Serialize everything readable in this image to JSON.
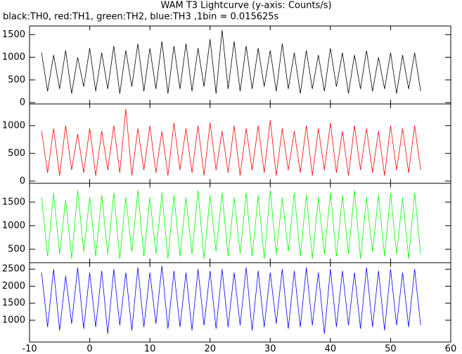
{
  "chart_data": [
    {
      "type": "line",
      "title": "WAM T3 Lightcurve (y-axis: Counts/s)",
      "subtitle": "black:TH0, red:TH1, green:TH2, blue:TH3 ,1bin = 0.015625s",
      "x": [
        -8,
        -7,
        -6,
        -5,
        -4,
        -3,
        -2,
        -1,
        0,
        1,
        2,
        3,
        4,
        5,
        6,
        7,
        8,
        9,
        10,
        11,
        12,
        13,
        14,
        15,
        16,
        17,
        18,
        19,
        20,
        21,
        22,
        23,
        24,
        25,
        26,
        27,
        28,
        29,
        30,
        31,
        32,
        33,
        34,
        35,
        36,
        37,
        38,
        39,
        40,
        41,
        42,
        43,
        44,
        45,
        46,
        47,
        48,
        49,
        50,
        51,
        52,
        53,
        54,
        55
      ],
      "series": [
        {
          "color": "#000000",
          "values": [
            1100,
            250,
            1050,
            300,
            1150,
            200,
            1000,
            350,
            1200,
            250,
            1100,
            300,
            1250,
            200,
            1150,
            350,
            1300,
            250,
            1200,
            300,
            1350,
            200,
            1250,
            300,
            1300,
            250,
            1200,
            350,
            1400,
            200,
            1600,
            300,
            1350,
            250,
            1250,
            300,
            1200,
            350,
            1150,
            250,
            1300,
            300,
            1100,
            200,
            1150,
            300,
            1050,
            250,
            1200,
            350,
            1100,
            200,
            1050,
            300,
            1150,
            250,
            1000,
            300,
            1100,
            200,
            1050,
            300,
            1100,
            250
          ]
        }
      ],
      "xlim": [
        -10,
        60
      ],
      "ylim": [
        -30,
        1690
      ],
      "yticks": [
        0,
        500,
        1000,
        1500
      ]
    },
    {
      "type": "line",
      "x": [
        -8,
        -7,
        -6,
        -5,
        -4,
        -3,
        -2,
        -1,
        0,
        1,
        2,
        3,
        4,
        5,
        6,
        7,
        8,
        9,
        10,
        11,
        12,
        13,
        14,
        15,
        16,
        17,
        18,
        19,
        20,
        21,
        22,
        23,
        24,
        25,
        26,
        27,
        28,
        29,
        30,
        31,
        32,
        33,
        34,
        35,
        36,
        37,
        38,
        39,
        40,
        41,
        42,
        43,
        44,
        45,
        46,
        47,
        48,
        49,
        50,
        51,
        52,
        53,
        54,
        55
      ],
      "series": [
        {
          "color": "#ff0000",
          "values": [
            900,
            150,
            950,
            100,
            1000,
            200,
            850,
            150,
            950,
            100,
            900,
            200,
            1000,
            150,
            1300,
            100,
            950,
            200,
            1000,
            150,
            900,
            100,
            1050,
            200,
            950,
            150,
            1000,
            100,
            1050,
            200,
            900,
            150,
            1000,
            100,
            950,
            200,
            1000,
            150,
            1100,
            100,
            950,
            200,
            900,
            150,
            1000,
            100,
            950,
            200,
            1050,
            150,
            900,
            100,
            1000,
            200,
            950,
            150,
            900,
            100,
            1000,
            200,
            950,
            150,
            1000,
            200
          ]
        }
      ],
      "xlim": [
        -10,
        60
      ],
      "ylim": [
        -40,
        1390
      ],
      "yticks": [
        0,
        500,
        1000
      ]
    },
    {
      "type": "line",
      "x": [
        -8,
        -7,
        -6,
        -5,
        -4,
        -3,
        -2,
        -1,
        0,
        1,
        2,
        3,
        4,
        5,
        6,
        7,
        8,
        9,
        10,
        11,
        12,
        13,
        14,
        15,
        16,
        17,
        18,
        19,
        20,
        21,
        22,
        23,
        24,
        25,
        26,
        27,
        28,
        29,
        30,
        31,
        32,
        33,
        34,
        35,
        36,
        37,
        38,
        39,
        40,
        41,
        42,
        43,
        44,
        45,
        46,
        47,
        48,
        49,
        50,
        51,
        52,
        53,
        54,
        55
      ],
      "series": [
        {
          "color": "#00ff00",
          "values": [
            1600,
            350,
            1700,
            400,
            1550,
            300,
            1750,
            450,
            1600,
            350,
            1650,
            400,
            1700,
            300,
            1600,
            450,
            1750,
            350,
            1600,
            400,
            1700,
            300,
            1650,
            350,
            1600,
            400,
            1750,
            300,
            1650,
            450,
            1700,
            350,
            1600,
            400,
            1700,
            350,
            1650,
            300,
            1750,
            400,
            1600,
            450,
            1700,
            350,
            1650,
            300,
            1600,
            400,
            1700,
            350,
            1650,
            400,
            1750,
            300,
            1600,
            450,
            1650,
            350,
            1700,
            400,
            1600,
            300,
            1700,
            400
          ]
        }
      ],
      "xlim": [
        -10,
        60
      ],
      "ylim": [
        215,
        1900
      ],
      "yticks": [
        500,
        1000,
        1500
      ]
    },
    {
      "type": "line",
      "x": [
        -8,
        -7,
        -6,
        -5,
        -4,
        -3,
        -2,
        -1,
        0,
        1,
        2,
        3,
        4,
        5,
        6,
        7,
        8,
        9,
        10,
        11,
        12,
        13,
        14,
        15,
        16,
        17,
        18,
        19,
        20,
        21,
        22,
        23,
        24,
        25,
        26,
        27,
        28,
        29,
        30,
        31,
        32,
        33,
        34,
        35,
        36,
        37,
        38,
        39,
        40,
        41,
        42,
        43,
        44,
        45,
        46,
        47,
        48,
        49,
        50,
        51,
        52,
        53,
        54,
        55
      ],
      "series": [
        {
          "color": "#0000ff",
          "values": [
            2400,
            800,
            2500,
            700,
            2300,
            900,
            2550,
            750,
            2400,
            800,
            2450,
            600,
            2500,
            850,
            2400,
            700,
            2550,
            800,
            2400,
            900,
            2600,
            750,
            2450,
            800,
            2400,
            700,
            2500,
            850,
            2450,
            750,
            2500,
            800,
            2400,
            850,
            2550,
            700,
            2450,
            800,
            2400,
            900,
            2500,
            750,
            2450,
            800,
            2550,
            850,
            2400,
            600,
            2500,
            800,
            2450,
            850,
            2400,
            750,
            2550,
            800,
            2450,
            700,
            2500,
            850,
            2400,
            800,
            2500,
            850
          ]
        }
      ],
      "xlim": [
        -10,
        60
      ],
      "ylim": [
        360,
        2690
      ],
      "yticks": [
        1000,
        1500,
        2000,
        2500
      ],
      "xticks": [
        -10,
        0,
        10,
        20,
        30,
        40,
        50,
        60
      ]
    }
  ]
}
